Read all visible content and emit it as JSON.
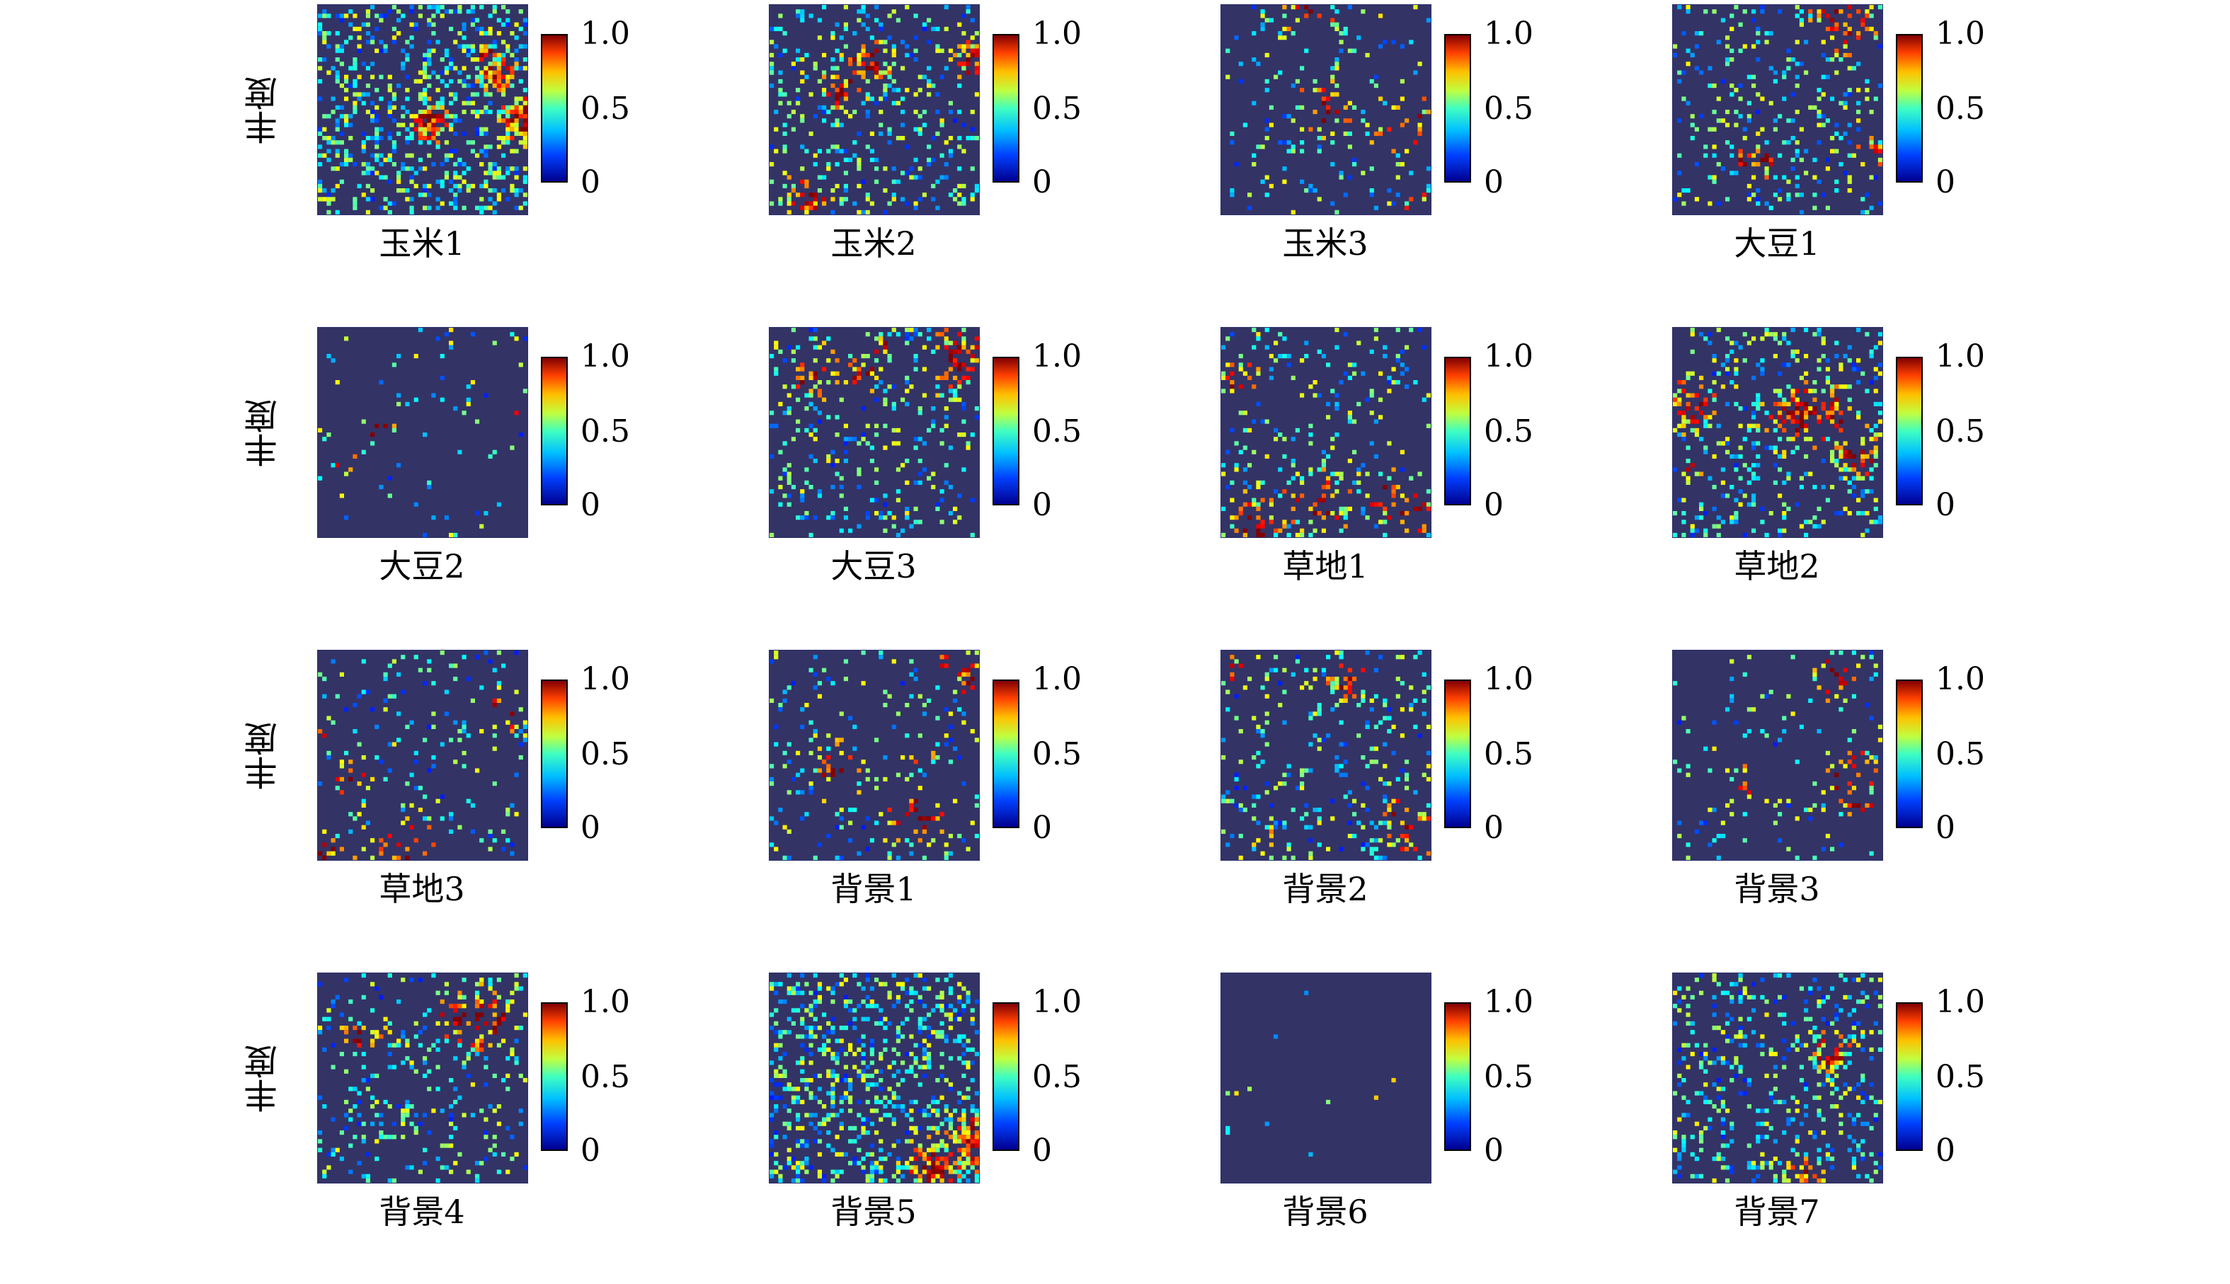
{
  "chart_data": {
    "type": "heatmap",
    "title": "",
    "ylabel": "丰度",
    "colorbar": {
      "ticks": [
        "1.0",
        "0.5",
        "0"
      ],
      "range": [
        0,
        1
      ],
      "colormap": "jet"
    },
    "grid": false,
    "panels": [
      {
        "label": "玉米1",
        "abundance_level": 0.45
      },
      {
        "label": "玉米2",
        "abundance_level": 0.25
      },
      {
        "label": "玉米3",
        "abundance_level": 0.12
      },
      {
        "label": "大豆1",
        "abundance_level": 0.2
      },
      {
        "label": "大豆2",
        "abundance_level": 0.05
      },
      {
        "label": "大豆3",
        "abundance_level": 0.2
      },
      {
        "label": "草地1",
        "abundance_level": 0.15
      },
      {
        "label": "草地2",
        "abundance_level": 0.25
      },
      {
        "label": "草地3",
        "abundance_level": 0.12
      },
      {
        "label": "背景1",
        "abundance_level": 0.15
      },
      {
        "label": "背景2",
        "abundance_level": 0.18
      },
      {
        "label": "背景3",
        "abundance_level": 0.1
      },
      {
        "label": "背景4",
        "abundance_level": 0.2
      },
      {
        "label": "背景5",
        "abundance_level": 0.45
      },
      {
        "label": "背景6",
        "abundance_level": 0.01
      },
      {
        "label": "背景7",
        "abundance_level": 0.3
      }
    ]
  }
}
